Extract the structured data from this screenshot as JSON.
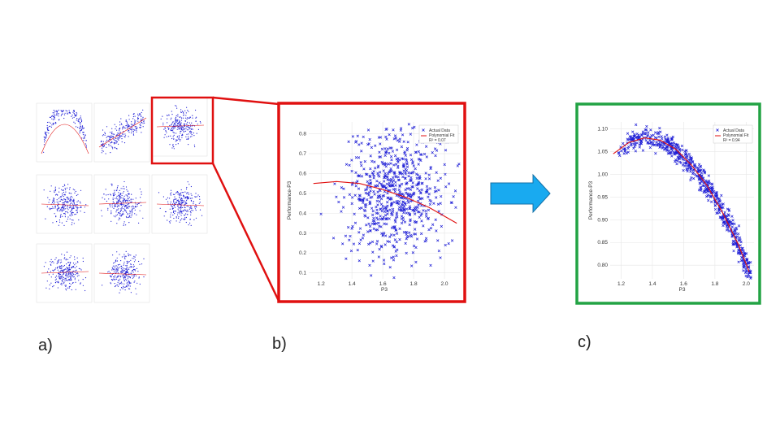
{
  "labels": {
    "a": "a)",
    "b": "b)",
    "c": "c)"
  },
  "colors": {
    "points": "#1f1fd6",
    "fit": "#e01010",
    "highlight_b": "#e01010",
    "highlight_c": "#22a344",
    "arrow": "#19aaf0",
    "arrow_edge": "#1570a6"
  },
  "chart_data": [
    {
      "id": "b",
      "type": "scatter",
      "xlabel": "P3",
      "ylabel": "Performance-P3",
      "xlim": [
        1.12,
        2.1
      ],
      "ylim": [
        0.07,
        0.86
      ],
      "xticks": [
        "1.2",
        "1.4",
        "1.6",
        "1.8",
        "2.0"
      ],
      "yticks": [
        "0.1",
        "0.2",
        "0.3",
        "0.4",
        "0.5",
        "0.6",
        "0.7",
        "0.8"
      ],
      "grid": true,
      "legend": {
        "placement": "top-right",
        "entries": [
          "Actual Data",
          "Polynomial Fit",
          "R² = 0.07"
        ]
      },
      "cloud": {
        "x_center": 1.68,
        "x_sd": 0.16,
        "y_center": 0.49,
        "y_sd": 0.16,
        "count": 700
      },
      "fit": {
        "x": [
          1.15,
          1.3,
          1.45,
          1.6,
          1.75,
          1.9,
          2.08
        ],
        "y": [
          0.55,
          0.56,
          0.55,
          0.52,
          0.48,
          0.43,
          0.35
        ]
      }
    },
    {
      "id": "c",
      "type": "scatter",
      "xlabel": "P3",
      "ylabel": "Performance-P3",
      "xlim": [
        1.13,
        2.05
      ],
      "ylim": [
        0.77,
        1.115
      ],
      "xticks": [
        "1.2",
        "1.4",
        "1.6",
        "1.8",
        "2.0"
      ],
      "yticks": [
        "0.80",
        "0.85",
        "0.90",
        "0.95",
        "1.00",
        "1.05",
        "1.10"
      ],
      "grid": true,
      "legend": {
        "placement": "top-right",
        "entries": [
          "Actual Data",
          "Polynomial Fit",
          "R² = 0.94"
        ]
      },
      "cloud": {
        "x_min": 1.18,
        "x_max": 2.03,
        "spread": 0.012,
        "count": 650
      },
      "fit": {
        "x": [
          1.15,
          1.25,
          1.35,
          1.45,
          1.55,
          1.65,
          1.75,
          1.85,
          1.95,
          2.02
        ],
        "y": [
          1.045,
          1.07,
          1.08,
          1.075,
          1.055,
          1.02,
          0.975,
          0.915,
          0.845,
          0.785
        ]
      }
    }
  ]
}
